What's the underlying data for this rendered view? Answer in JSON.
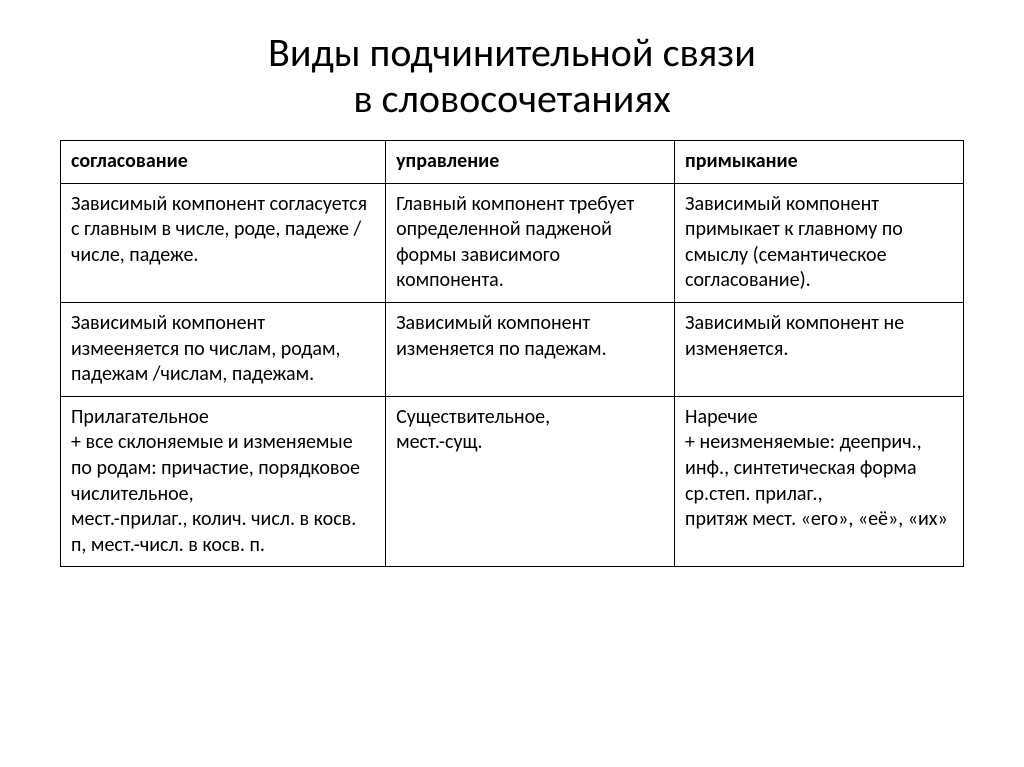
{
  "title_line1": "Виды подчинительной связи",
  "title_line2": "в словосочетаниях",
  "table": {
    "columns": [
      "согласование",
      "управление",
      "примыкание"
    ],
    "rows": [
      [
        "Зависимый компонент согласуется с главным в числе, роде, падеже /  числе, падеже.",
        "Главный компонент требует определенной падженой формы зависимого компонента.",
        "Зависимый компонент примыкает к главному по смыслу (семантическое согласование)."
      ],
      [
        "Зависимый компонент измееняется по числам, родам, падежам /числам, падежам.",
        "Зависимый компонент изменяется по падежам.",
        "Зависимый компонент не изменяется."
      ],
      [
        "Прилагательное\n+ все склоняемые и изменяемые по родам: причастие, порядковое числительное,\nмест.-прилаг., колич. числ. в косв. п, мест.-числ. в косв. п.",
        "Существительное,\nмест.-сущ.",
        "Наречие\n+ неизменяемые: дееприч.,  инф., синтетическая форма ср.степ. прилаг.,\nпритяж мест. «его», «её», «их»"
      ]
    ],
    "col_widths_pct": [
      36,
      32,
      32
    ],
    "border_color": "#000000",
    "background_color": "#ffffff",
    "header_font_weight": 700,
    "body_font_weight": 400,
    "font_size_pt": 15,
    "title_font_size_pt": 30
  }
}
